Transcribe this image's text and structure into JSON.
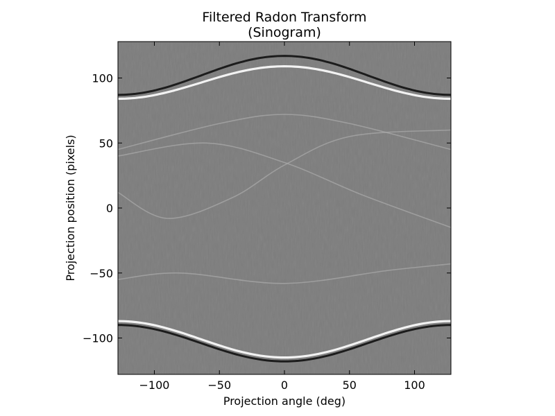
{
  "chart_data": {
    "type": "heatmap",
    "title": "Filtered Radon Transform",
    "subtitle": "(Sinogram)",
    "xlabel": "Projection angle (deg)",
    "ylabel": "Projection position (pixels)",
    "xlim": [
      -128,
      128
    ],
    "ylim": [
      -128,
      128
    ],
    "x_ticks": [
      -100,
      -50,
      0,
      50,
      100
    ],
    "y_ticks": [
      -100,
      -50,
      0,
      50,
      100
    ],
    "x_tick_labels": [
      "−100",
      "−50",
      "0",
      "50",
      "100"
    ],
    "y_tick_labels": [
      "−100",
      "−50",
      "0",
      "50",
      "100"
    ],
    "colormap": "grayscale",
    "grid": false,
    "background_level": "mid-gray",
    "traces": [
      {
        "kind": "boundary-top-outer",
        "center": 0,
        "amplitude": 117,
        "edge_value": 87,
        "tone": "dark"
      },
      {
        "kind": "boundary-top-inner",
        "center": 0,
        "amplitude": 109,
        "edge_value": 84,
        "tone": "bright"
      },
      {
        "kind": "boundary-bottom-inner",
        "center": 0,
        "amplitude": -115,
        "edge_value": -87,
        "tone": "bright"
      },
      {
        "kind": "boundary-bottom-outer",
        "center": 0,
        "amplitude": -118,
        "edge_value": -90,
        "tone": "dark"
      },
      {
        "kind": "feature",
        "points": [
          [
            -128,
            12
          ],
          [
            -90,
            -8
          ],
          [
            -40,
            8
          ],
          [
            0,
            33
          ],
          [
            50,
            55
          ],
          [
            128,
            60
          ]
        ]
      },
      {
        "kind": "feature",
        "points": [
          [
            -128,
            40
          ],
          [
            -60,
            50
          ],
          [
            0,
            35
          ],
          [
            60,
            10
          ],
          [
            128,
            -15
          ]
        ]
      },
      {
        "kind": "feature",
        "points": [
          [
            -128,
            -55
          ],
          [
            -80,
            -50
          ],
          [
            0,
            -58
          ],
          [
            80,
            -48
          ],
          [
            128,
            -43
          ]
        ]
      },
      {
        "kind": "feature",
        "points": [
          [
            -128,
            45
          ],
          [
            -50,
            65
          ],
          [
            0,
            72
          ],
          [
            50,
            65
          ],
          [
            128,
            45
          ]
        ]
      }
    ]
  }
}
